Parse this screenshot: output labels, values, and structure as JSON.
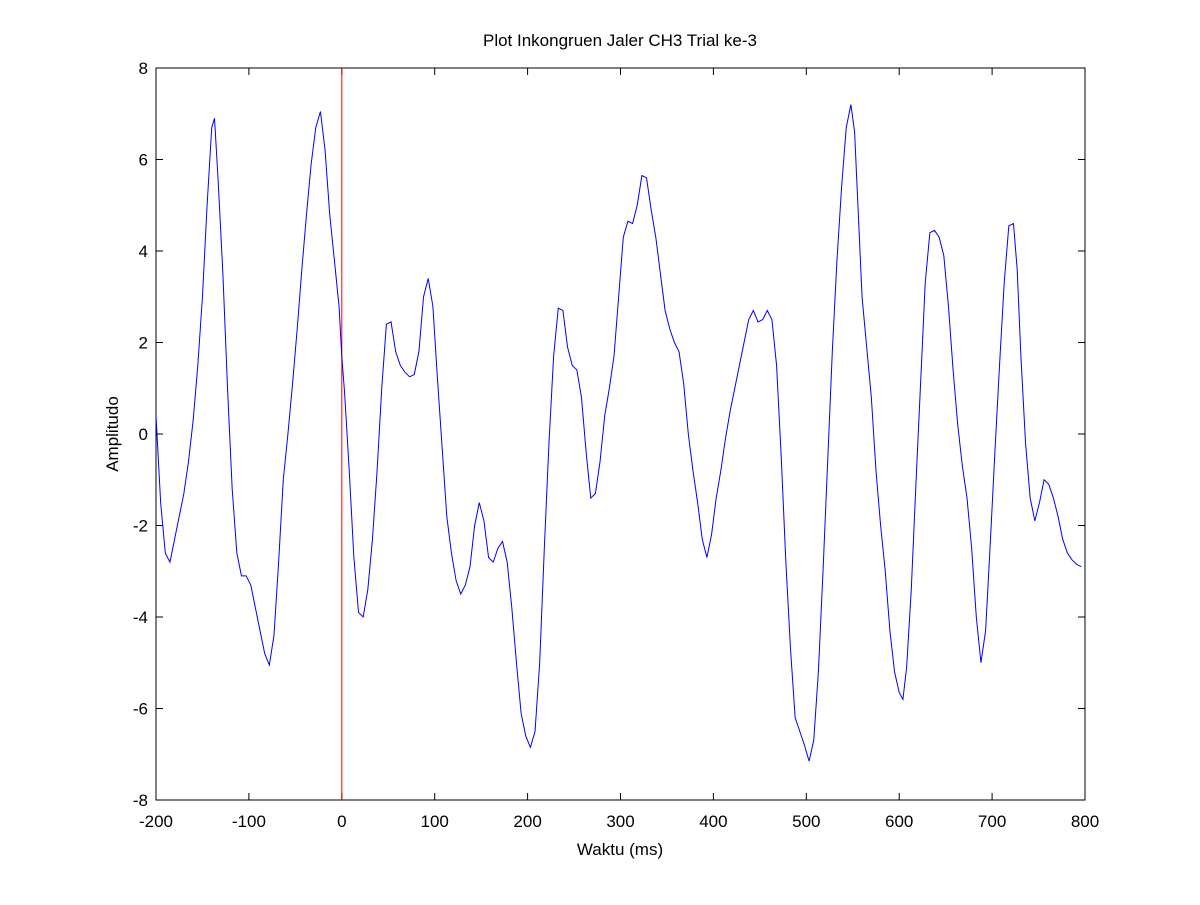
{
  "chart_data": {
    "type": "line",
    "title": "Plot Inkongruen Jaler CH3 Trial ke-3",
    "x_label": "Waktu (ms)",
    "y_label": "Amplitudo",
    "x": [
      -200,
      -195,
      -190,
      -185,
      -180,
      -175,
      -170,
      -165,
      -160,
      -155,
      -150,
      -145,
      -140,
      -137,
      -133,
      -128,
      -123,
      -118,
      -113,
      -108,
      -103,
      -98,
      -93,
      -88,
      -83,
      -78,
      -73,
      -68,
      -63,
      -58,
      -53,
      -48,
      -43,
      -38,
      -33,
      -28,
      -23,
      -18,
      -13,
      -8,
      -3,
      0,
      3,
      8,
      13,
      18,
      23,
      28,
      33,
      38,
      43,
      48,
      53,
      58,
      63,
      68,
      73,
      78,
      83,
      88,
      93,
      98,
      103,
      108,
      113,
      118,
      123,
      128,
      133,
      138,
      143,
      148,
      153,
      158,
      163,
      168,
      173,
      178,
      183,
      188,
      193,
      198,
      203,
      208,
      213,
      218,
      223,
      228,
      233,
      238,
      243,
      248,
      253,
      258,
      263,
      268,
      273,
      278,
      283,
      288,
      293,
      298,
      303,
      308,
      313,
      318,
      323,
      328,
      333,
      338,
      343,
      348,
      353,
      358,
      363,
      368,
      373,
      378,
      383,
      388,
      393,
      398,
      403,
      408,
      413,
      418,
      423,
      428,
      433,
      438,
      443,
      448,
      453,
      458,
      463,
      468,
      473,
      478,
      483,
      488,
      493,
      498,
      503,
      508,
      513,
      518,
      523,
      528,
      533,
      538,
      543,
      548,
      552,
      556,
      560,
      565,
      570,
      575,
      580,
      585,
      590,
      595,
      600,
      604,
      608,
      613,
      618,
      623,
      628,
      633,
      638,
      643,
      648,
      653,
      658,
      663,
      668,
      673,
      678,
      683,
      688,
      693,
      698,
      703,
      708,
      713,
      718,
      723,
      727,
      731,
      736,
      741,
      746,
      751,
      756,
      761,
      766,
      771,
      776,
      781,
      786,
      791,
      796
    ],
    "series": [
      {
        "color": "#0000ff",
        "values": [
          0.4,
          -1.5,
          -2.6,
          -2.8,
          -2.3,
          -1.8,
          -1.3,
          -0.6,
          0.3,
          1.5,
          3.0,
          5.0,
          6.7,
          6.9,
          5.5,
          3.5,
          1.0,
          -1.2,
          -2.6,
          -3.1,
          -3.1,
          -3.3,
          -3.8,
          -4.3,
          -4.8,
          -5.05,
          -4.4,
          -2.8,
          -1.0,
          0.0,
          1.1,
          2.3,
          3.6,
          4.8,
          5.9,
          6.7,
          7.05,
          6.2,
          4.8,
          3.8,
          2.8,
          1.7,
          0.9,
          -0.8,
          -2.7,
          -3.9,
          -4.0,
          -3.4,
          -2.3,
          -0.8,
          1.0,
          2.4,
          2.45,
          1.8,
          1.5,
          1.35,
          1.25,
          1.3,
          1.8,
          3.0,
          3.4,
          2.8,
          1.2,
          -0.3,
          -1.8,
          -2.6,
          -3.2,
          -3.5,
          -3.3,
          -2.9,
          -2.0,
          -1.5,
          -1.9,
          -2.7,
          -2.8,
          -2.5,
          -2.35,
          -2.8,
          -3.8,
          -5.0,
          -6.1,
          -6.6,
          -6.85,
          -6.5,
          -5.0,
          -2.5,
          -0.2,
          1.7,
          2.75,
          2.7,
          1.9,
          1.5,
          1.4,
          0.8,
          -0.4,
          -1.4,
          -1.3,
          -0.6,
          0.4,
          1.0,
          1.7,
          3.0,
          4.3,
          4.65,
          4.6,
          5.0,
          5.65,
          5.6,
          4.9,
          4.3,
          3.5,
          2.7,
          2.3,
          2.0,
          1.8,
          1.1,
          0.0,
          -0.8,
          -1.5,
          -2.3,
          -2.7,
          -2.2,
          -1.4,
          -0.8,
          -0.1,
          0.5,
          1.0,
          1.5,
          2.0,
          2.5,
          2.7,
          2.45,
          2.5,
          2.7,
          2.5,
          1.5,
          -0.5,
          -2.8,
          -4.7,
          -6.2,
          -6.5,
          -6.8,
          -7.15,
          -6.7,
          -5.2,
          -3.0,
          -0.6,
          1.8,
          3.8,
          5.4,
          6.7,
          7.2,
          6.6,
          4.8,
          3.0,
          1.9,
          0.8,
          -0.8,
          -2.0,
          -3.0,
          -4.3,
          -5.2,
          -5.65,
          -5.8,
          -5.1,
          -3.4,
          -1.1,
          1.1,
          3.3,
          4.4,
          4.45,
          4.3,
          3.9,
          2.8,
          1.4,
          0.2,
          -0.7,
          -1.4,
          -2.5,
          -4.0,
          -5.0,
          -4.3,
          -2.4,
          -0.4,
          1.5,
          3.3,
          4.55,
          4.6,
          3.6,
          1.7,
          -0.2,
          -1.4,
          -1.9,
          -1.5,
          -1.0,
          -1.1,
          -1.4,
          -1.8,
          -2.3,
          -2.6,
          -2.75,
          -2.85,
          -2.9
        ]
      }
    ],
    "vertical_line": {
      "x": 0,
      "color": "#ff0000"
    },
    "xlim": [
      -200,
      800
    ],
    "xticks": [
      -200,
      -100,
      0,
      100,
      200,
      300,
      400,
      500,
      600,
      700,
      800
    ],
    "ylim": [
      -8,
      8
    ],
    "yticks": [
      -8,
      -6,
      -4,
      -2,
      0,
      2,
      4,
      6,
      8
    ],
    "grid": false
  }
}
